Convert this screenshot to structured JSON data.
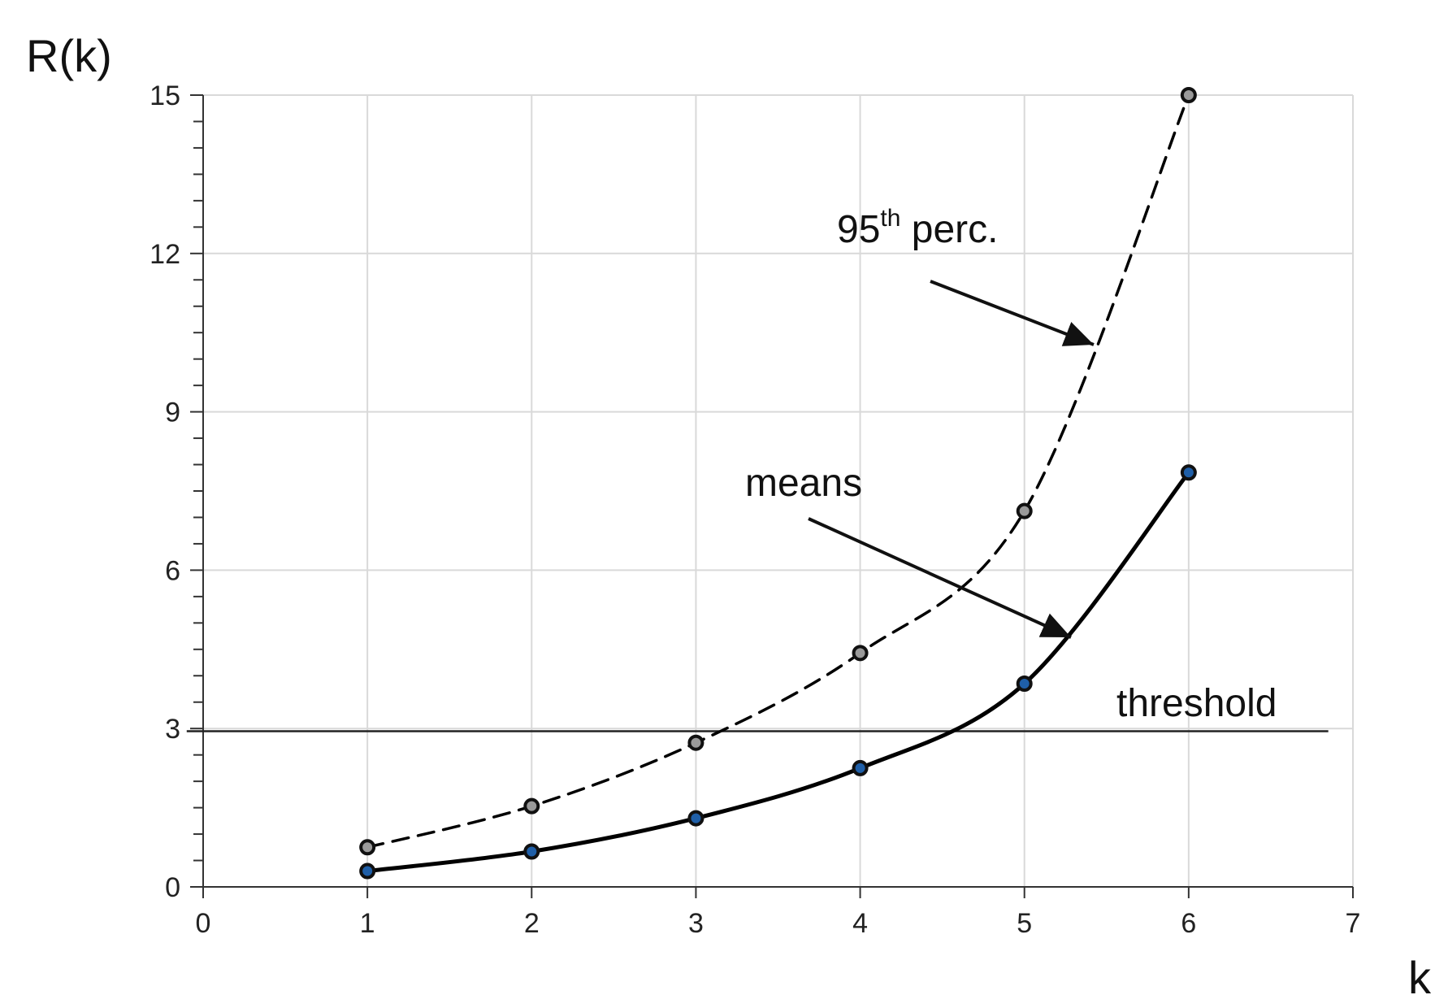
{
  "chart_data": {
    "type": "line",
    "title": "",
    "xlabel": "k",
    "ylabel": "R(k)",
    "xlim": [
      0,
      7
    ],
    "ylim": [
      0,
      15
    ],
    "xticks": [
      0,
      1,
      2,
      3,
      4,
      5,
      6,
      7
    ],
    "yticks": [
      0,
      3,
      6,
      9,
      12,
      15
    ],
    "grid": true,
    "series": [
      {
        "name": "means",
        "style": "solid",
        "color": "#000000",
        "marker_color": "#1f5fa8",
        "x": [
          1,
          2,
          3,
          4,
          5,
          6
        ],
        "y": [
          0.3,
          0.67,
          1.3,
          2.25,
          3.85,
          7.85
        ]
      },
      {
        "name": "95th perc.",
        "style": "dashed",
        "color": "#000000",
        "marker_color": "#9a9a9a",
        "x": [
          1,
          2,
          3,
          4,
          5,
          6
        ],
        "y": [
          0.75,
          1.53,
          2.73,
          4.43,
          7.12,
          15.0
        ]
      }
    ],
    "threshold": {
      "label": "threshold",
      "y": 2.95,
      "x_range": [
        -0.1,
        6.85
      ]
    },
    "annotations": [
      {
        "id": "perc",
        "text_main": "95",
        "text_sup": "th",
        "text_rest": " perc."
      },
      {
        "id": "means",
        "text": "means"
      }
    ]
  }
}
